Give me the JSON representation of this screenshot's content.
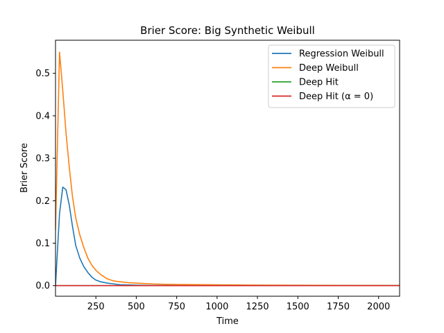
{
  "chart_data": {
    "type": "line",
    "title": "Brier Score: Big Synthetic Weibull",
    "xlabel": "Time",
    "ylabel": "Brier Score",
    "xlim": [
      0,
      2130
    ],
    "ylim": [
      -0.025,
      0.578
    ],
    "xticks": [
      250,
      500,
      750,
      1000,
      1250,
      1500,
      1750,
      2000
    ],
    "xtick_labels": [
      "250",
      "500",
      "750",
      "1000",
      "1250",
      "1500",
      "1750",
      "2000"
    ],
    "yticks": [
      0.0,
      0.1,
      0.2,
      0.3,
      0.4,
      0.5
    ],
    "ytick_labels": [
      "0.0",
      "0.1",
      "0.2",
      "0.3",
      "0.4",
      "0.5"
    ],
    "grid": false,
    "legend_position": "top-right",
    "series": [
      {
        "name": "Regression Weibull",
        "color": "#1f77b4",
        "x": [
          0,
          25,
          45,
          65,
          85,
          105,
          125,
          150,
          175,
          200,
          225,
          250,
          280,
          320,
          360,
          400,
          500,
          600,
          800,
          1000,
          1500,
          2000,
          2130
        ],
        "y": [
          0.0,
          0.17,
          0.232,
          0.226,
          0.19,
          0.14,
          0.095,
          0.065,
          0.045,
          0.031,
          0.02,
          0.013,
          0.009,
          0.006,
          0.004,
          0.002,
          0.001,
          0.0005,
          0.0003,
          0.0002,
          0.0001,
          0.0,
          0.0
        ]
      },
      {
        "name": "Deep Weibull",
        "color": "#ff7f0e",
        "x": [
          0,
          25,
          45,
          65,
          85,
          105,
          125,
          150,
          175,
          200,
          225,
          250,
          280,
          320,
          360,
          400,
          450,
          500,
          600,
          700,
          800,
          1000,
          1200,
          1500,
          2000,
          2130
        ],
        "y": [
          0.13,
          0.55,
          0.46,
          0.36,
          0.28,
          0.21,
          0.16,
          0.12,
          0.09,
          0.065,
          0.048,
          0.036,
          0.026,
          0.016,
          0.011,
          0.009,
          0.007,
          0.006,
          0.004,
          0.003,
          0.0025,
          0.0018,
          0.0012,
          0.0008,
          0.0004,
          0.0003
        ]
      },
      {
        "name": "Deep Hit",
        "color": "#2ca02c",
        "x": [
          0,
          2130
        ],
        "y": [
          0.0,
          0.0
        ]
      },
      {
        "name": "Deep Hit (α = 0)",
        "color": "#d62728",
        "x": [
          0,
          2130
        ],
        "y": [
          0.0,
          0.0
        ]
      }
    ]
  }
}
